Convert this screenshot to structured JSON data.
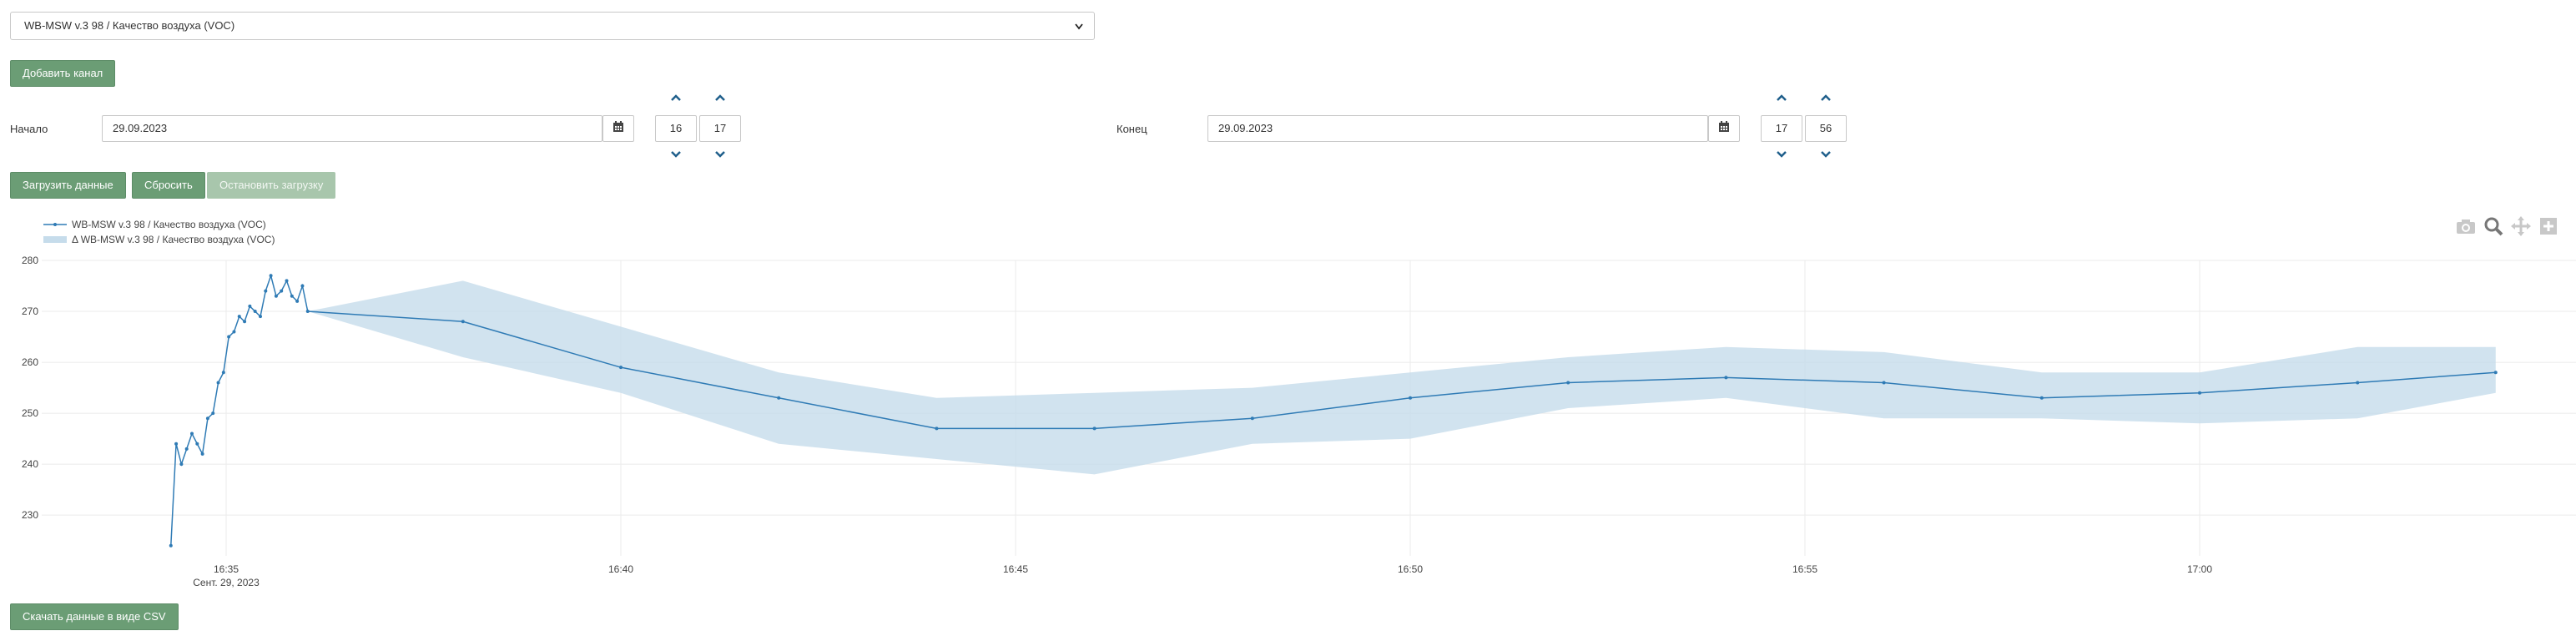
{
  "channel_select": {
    "value": "WB-MSW v.3 98 / Качество воздуха (VOC)"
  },
  "buttons": {
    "add_channel": "Добавить канал",
    "load_data": "Загрузить данные",
    "reset": "Сбросить",
    "stop_loading": "Остановить загрузку",
    "download_csv": "Скачать данные в виде CSV"
  },
  "start": {
    "label": "Начало",
    "date": "29.09.2023",
    "hour": "16",
    "minute": "17"
  },
  "end": {
    "label": "Конец",
    "date": "29.09.2023",
    "hour": "17",
    "minute": "56"
  },
  "icons": {
    "calendar": "calendar-icon",
    "chevron_up": "chevron-up-icon",
    "chevron_down": "chevron-down-icon",
    "camera": "camera-icon",
    "zoom": "zoom-icon",
    "pan": "pan-icon",
    "zoom_in": "zoom-in-icon"
  },
  "colors": {
    "button": "#6b9d75",
    "button_disabled": "#a8c6ac",
    "line": "#2f7bb5",
    "band": "#c6dceb",
    "chevron": "#1f5f8b"
  },
  "chart_data": {
    "type": "line",
    "series": [
      {
        "name": "WB-MSW v.3 98 / Качество воздуха (VOC)",
        "kind": "line"
      },
      {
        "name": "Δ WB-MSW v.3 98 / Качество воздуха (VOC)",
        "kind": "band"
      }
    ],
    "x_start_label": "Сент. 29, 2023",
    "x_ticks": [
      "16:35",
      "16:40",
      "16:45",
      "16:50",
      "16:55",
      "17:00"
    ],
    "y_ticks": [
      230,
      240,
      250,
      260,
      270,
      280
    ],
    "xlim": [
      "16:34:45",
      "17:03:45"
    ],
    "ylim": [
      222,
      280
    ],
    "grid": true,
    "legend_position": "top-left",
    "points": [
      [
        "16:34:18",
        224
      ],
      [
        "16:34:22",
        244
      ],
      [
        "16:34:26",
        240
      ],
      [
        "16:34:30",
        243
      ],
      [
        "16:34:34",
        246
      ],
      [
        "16:34:38",
        244
      ],
      [
        "16:34:42",
        242
      ],
      [
        "16:34:46",
        249
      ],
      [
        "16:34:50",
        250
      ],
      [
        "16:34:54",
        256
      ],
      [
        "16:34:58",
        258
      ],
      [
        "16:35:02",
        265
      ],
      [
        "16:35:06",
        266
      ],
      [
        "16:35:10",
        269
      ],
      [
        "16:35:14",
        268
      ],
      [
        "16:35:18",
        271
      ],
      [
        "16:35:22",
        270
      ],
      [
        "16:35:26",
        269
      ],
      [
        "16:35:30",
        274
      ],
      [
        "16:35:34",
        277
      ],
      [
        "16:35:38",
        273
      ],
      [
        "16:35:42",
        274
      ],
      [
        "16:35:46",
        276
      ],
      [
        "16:35:50",
        273
      ],
      [
        "16:35:54",
        272
      ],
      [
        "16:35:58",
        275
      ],
      [
        "16:36:02",
        270
      ],
      [
        "16:38:00",
        268
      ],
      [
        "16:40:00",
        259
      ],
      [
        "16:42:00",
        253
      ],
      [
        "16:44:00",
        247
      ],
      [
        "16:46:00",
        247
      ],
      [
        "16:48:00",
        249
      ],
      [
        "16:50:00",
        253
      ],
      [
        "16:52:00",
        256
      ],
      [
        "16:54:00",
        257
      ],
      [
        "16:56:00",
        256
      ],
      [
        "16:58:00",
        253
      ],
      [
        "17:00:00",
        254
      ],
      [
        "17:02:00",
        256
      ],
      [
        "17:03:45",
        258
      ]
    ],
    "band": [
      [
        "16:36:02",
        270,
        270
      ],
      [
        "16:38:00",
        261,
        276
      ],
      [
        "16:40:00",
        254,
        267
      ],
      [
        "16:42:00",
        244,
        258
      ],
      [
        "16:44:00",
        241,
        253
      ],
      [
        "16:46:00",
        238,
        254
      ],
      [
        "16:48:00",
        244,
        255
      ],
      [
        "16:50:00",
        245,
        258
      ],
      [
        "16:52:00",
        251,
        261
      ],
      [
        "16:54:00",
        253,
        263
      ],
      [
        "16:56:00",
        249,
        262
      ],
      [
        "16:58:00",
        249,
        258
      ],
      [
        "17:00:00",
        248,
        258
      ],
      [
        "17:02:00",
        249,
        263
      ],
      [
        "17:03:45",
        254,
        263
      ]
    ]
  }
}
